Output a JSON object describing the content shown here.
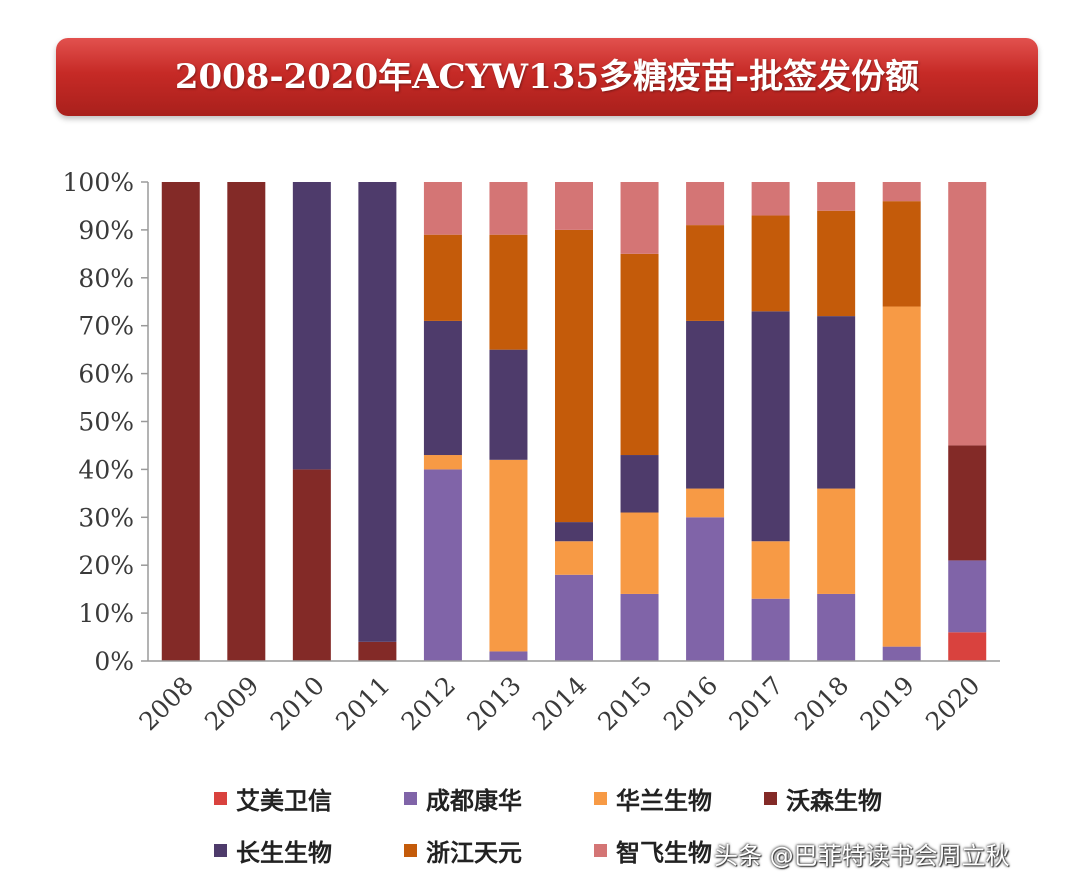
{
  "chart_data": {
    "type": "bar",
    "stacked": true,
    "title": "2008-2020年ACYW135多糖疫苗-批签发份额",
    "categories": [
      "2008",
      "2009",
      "2010",
      "2011",
      "2012",
      "2013",
      "2014",
      "2015",
      "2016",
      "2017",
      "2018",
      "2019",
      "2020"
    ],
    "y_ticks": [
      "0%",
      "10%",
      "20%",
      "30%",
      "40%",
      "50%",
      "60%",
      "70%",
      "80%",
      "90%",
      "100%"
    ],
    "ylim": [
      0,
      100
    ],
    "legend_position": "bottom",
    "series": [
      {
        "name": "艾美卫信",
        "color": "#d9423e",
        "values": [
          0,
          0,
          0,
          0,
          0,
          0,
          0,
          0,
          0,
          0,
          0,
          0,
          6
        ]
      },
      {
        "name": "成都康华",
        "color": "#8064a8",
        "values": [
          0,
          0,
          0,
          0,
          40,
          2,
          18,
          14,
          30,
          13,
          14,
          3,
          15
        ]
      },
      {
        "name": "华兰生物",
        "color": "#f79a45",
        "values": [
          0,
          0,
          0,
          0,
          3,
          40,
          7,
          17,
          6,
          12,
          22,
          71,
          0
        ]
      },
      {
        "name": "沃森生物",
        "color": "#832a27",
        "values": [
          100,
          100,
          40,
          4,
          0,
          0,
          0,
          0,
          0,
          0,
          0,
          0,
          24
        ]
      },
      {
        "name": "长生生物",
        "color": "#4e3b6b",
        "values": [
          0,
          0,
          60,
          96,
          28,
          23,
          4,
          12,
          35,
          48,
          36,
          0,
          0
        ]
      },
      {
        "name": "浙江天元",
        "color": "#c45b0a",
        "values": [
          0,
          0,
          0,
          0,
          18,
          24,
          61,
          42,
          20,
          20,
          22,
          22,
          0
        ]
      },
      {
        "name": "智飞生物",
        "color": "#d47575",
        "values": [
          0,
          0,
          0,
          0,
          11,
          11,
          10,
          15,
          9,
          7,
          6,
          4,
          55
        ]
      }
    ]
  },
  "watermark": "头条 @巴菲特读书会周立秋"
}
